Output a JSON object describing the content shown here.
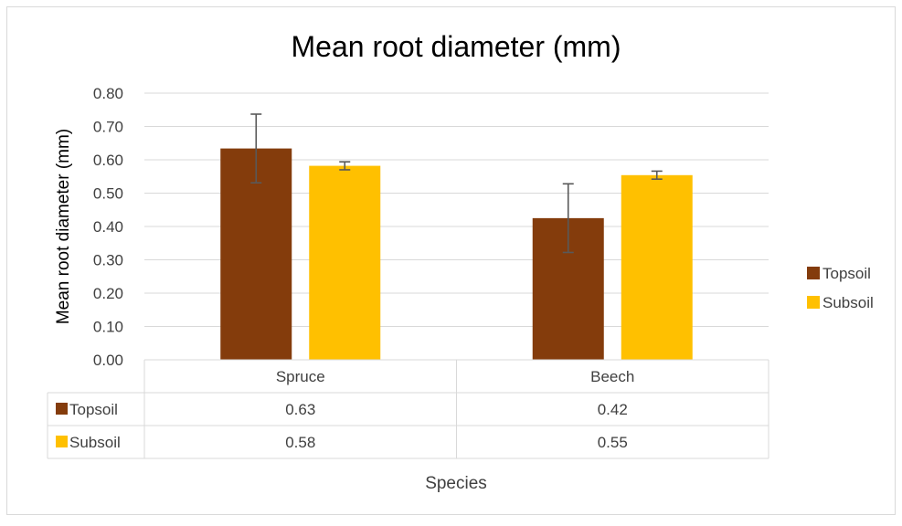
{
  "chart_data": {
    "type": "bar",
    "title": "Mean root diameter (mm)",
    "ylabel": "Mean root diameter (mm)",
    "xlabel": "Species",
    "categories": [
      "Spruce",
      "Beech"
    ],
    "ylim": [
      0,
      0.8
    ],
    "yticks": [
      "0.00",
      "0.10",
      "0.20",
      "0.30",
      "0.40",
      "0.50",
      "0.60",
      "0.70",
      "0.80"
    ],
    "grid": true,
    "legend_position": "right",
    "series": [
      {
        "name": "Topsoil",
        "color": "#843C0C",
        "values": [
          0.634,
          0.425
        ],
        "error_bars": [
          0.103,
          0.103
        ],
        "table_values": [
          "0.63",
          "0.42"
        ]
      },
      {
        "name": "Subsoil",
        "color": "#FFC000",
        "values": [
          0.582,
          0.554
        ],
        "error_bars": [
          0.012,
          0.012
        ],
        "table_values": [
          "0.58",
          "0.55"
        ]
      }
    ]
  }
}
